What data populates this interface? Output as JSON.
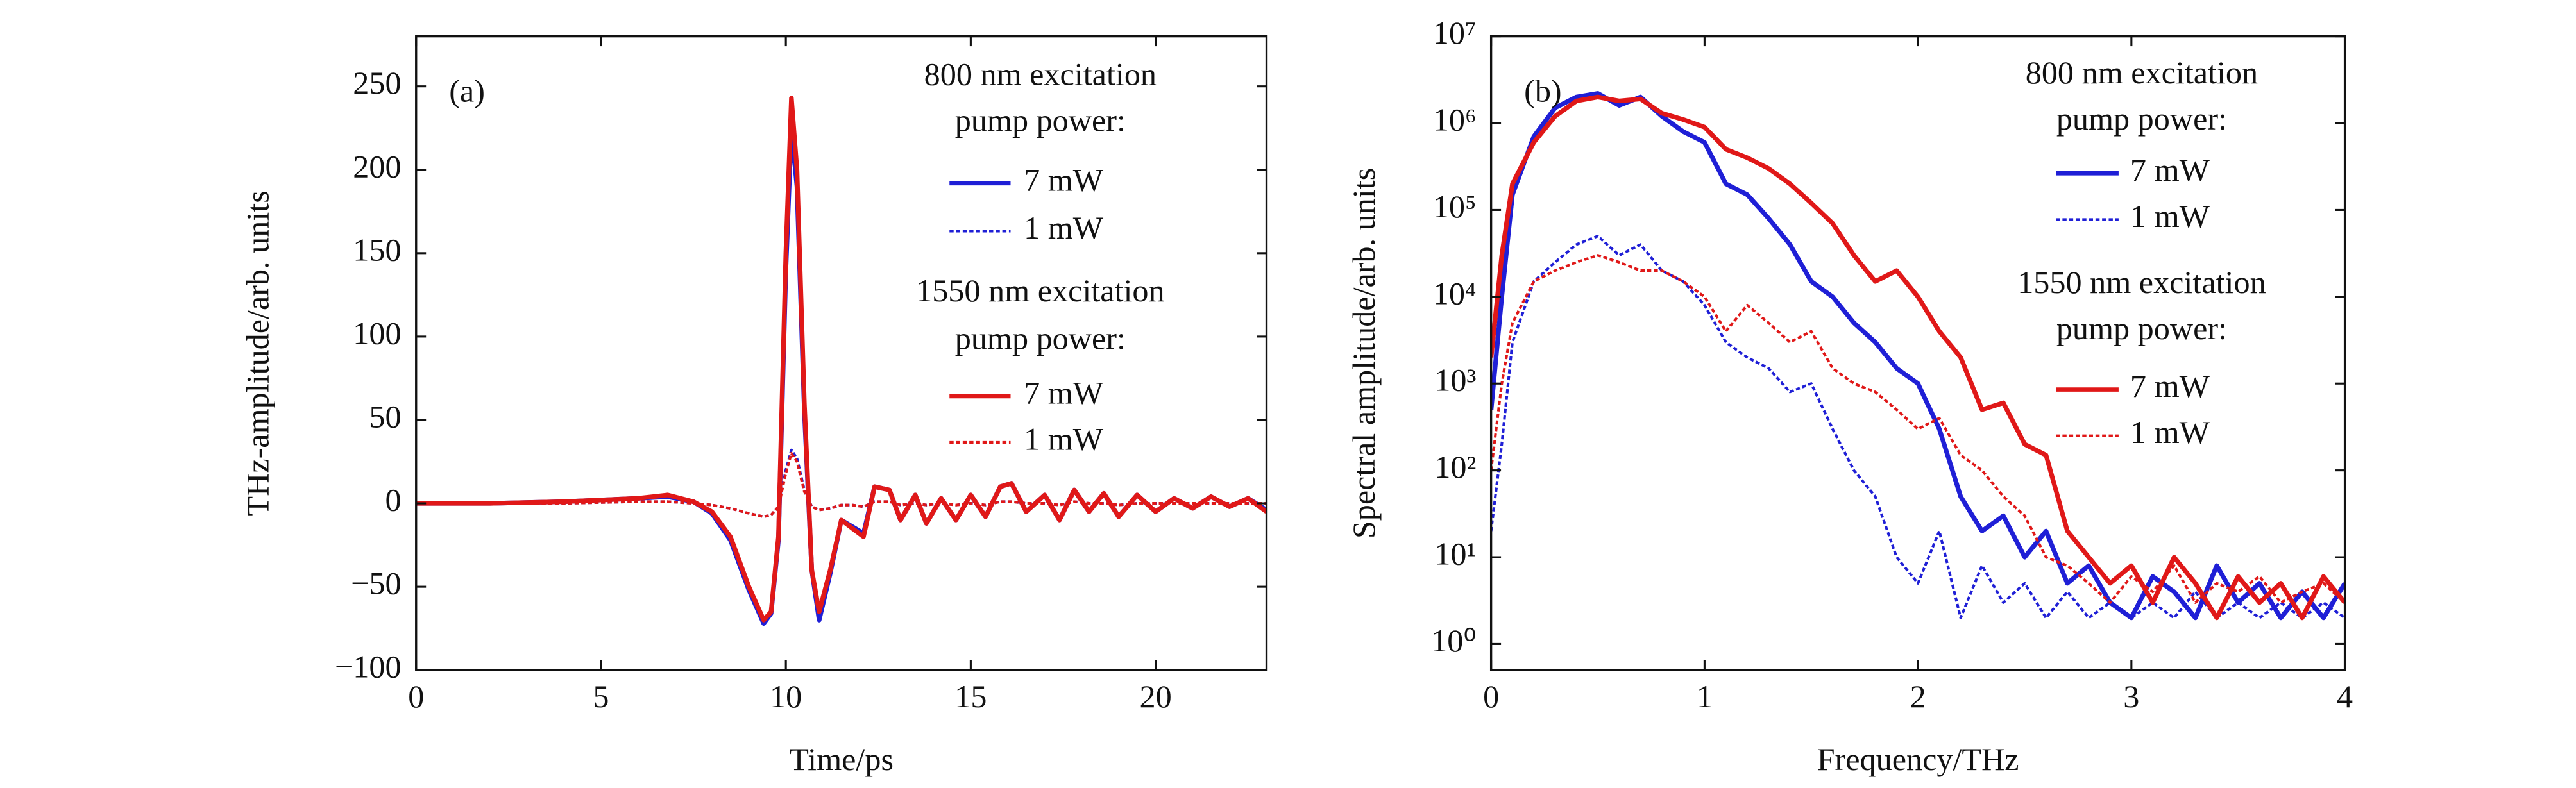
{
  "chart_data": [
    {
      "type": "line",
      "panel_label": "(a)",
      "xlabel": "Time/ps",
      "ylabel": "THz-amplitude/arb. units",
      "xlim": [
        0,
        23
      ],
      "ylim": [
        -100,
        280
      ],
      "xticks": [
        0,
        5,
        10,
        15,
        20
      ],
      "yticks": [
        {
          "value": -100,
          "label": "−100"
        },
        {
          "value": -50,
          "label": "−50"
        },
        0,
        50,
        100,
        150,
        200,
        250
      ],
      "legend_titles": [
        [
          "800 nm excitation",
          "pump power:"
        ],
        [
          "1550 nm excitation",
          "pump power:"
        ]
      ],
      "x": [
        0,
        2,
        4,
        6,
        6.8,
        7.5,
        8,
        8.5,
        9,
        9.4,
        9.6,
        9.8,
        10,
        10.15,
        10.3,
        10.5,
        10.7,
        10.9,
        11.2,
        11.5,
        11.8,
        12.1,
        12.4,
        12.8,
        13.1,
        13.5,
        13.8,
        14.2,
        14.6,
        15,
        15.4,
        15.8,
        16.1,
        16.5,
        17,
        17.4,
        17.8,
        18.2,
        18.6,
        19,
        19.5,
        20,
        20.5,
        21,
        21.5,
        22,
        22.5,
        23
      ],
      "series": [
        {
          "name": "7 mW",
          "color": "#1f1fd6",
          "dash": false,
          "values": [
            0,
            0,
            1,
            3,
            4,
            1,
            -6,
            -22,
            -52,
            -72,
            -66,
            -22,
            140,
            225,
            190,
            55,
            -40,
            -70,
            -42,
            -10,
            -14,
            -18,
            10,
            8,
            -10,
            5,
            -12,
            3,
            -10,
            5,
            -8,
            10,
            12,
            -5,
            5,
            -10,
            8,
            -5,
            6,
            -8,
            5,
            -5,
            3,
            -3,
            4,
            -2,
            3,
            -4
          ]
        },
        {
          "name": "1 mW",
          "color": "#1f1fd6",
          "dash": true,
          "values": [
            0,
            0,
            0,
            1,
            1,
            0,
            -1,
            -3,
            -6,
            -8,
            -7,
            -2,
            20,
            32,
            27,
            8,
            -2,
            -4,
            -3,
            -1,
            -1,
            -2,
            1,
            1,
            -1,
            0,
            -1,
            0,
            -1,
            0,
            -1,
            1,
            1,
            0,
            0,
            -1,
            1,
            0,
            0,
            -1,
            0,
            0,
            0,
            0,
            0,
            0,
            0,
            0
          ]
        },
        {
          "name": "7 mW",
          "color": "#e01818",
          "dash": false,
          "values": [
            0,
            0,
            1,
            3,
            5,
            1,
            -5,
            -20,
            -50,
            -70,
            -65,
            -20,
            150,
            243,
            200,
            60,
            -40,
            -65,
            -40,
            -10,
            -15,
            -20,
            10,
            8,
            -10,
            5,
            -12,
            3,
            -10,
            5,
            -8,
            10,
            12,
            -5,
            5,
            -10,
            8,
            -5,
            6,
            -8,
            5,
            -5,
            3,
            -3,
            4,
            -2,
            3,
            -5
          ]
        },
        {
          "name": "1 mW",
          "color": "#e01818",
          "dash": true,
          "values": [
            0,
            0,
            0,
            1,
            1,
            0,
            -1,
            -3,
            -6,
            -8,
            -7,
            -2,
            18,
            30,
            25,
            7,
            -2,
            -4,
            -3,
            -1,
            -1,
            -2,
            1,
            1,
            -1,
            0,
            -1,
            0,
            -1,
            0,
            -1,
            1,
            1,
            0,
            0,
            -1,
            1,
            0,
            0,
            -1,
            0,
            0,
            0,
            0,
            0,
            0,
            0,
            0
          ]
        }
      ]
    },
    {
      "type": "line",
      "panel_label": "(b)",
      "xlabel": "Frequency/THz",
      "ylabel": "Spectral amplitude/arb. units",
      "log_y": true,
      "xlim": [
        0,
        4
      ],
      "ylim": [
        0.5,
        10000000
      ],
      "xticks": [
        0,
        1,
        2,
        3,
        4
      ],
      "yticks": [
        {
          "value": 1,
          "label": "10⁰"
        },
        {
          "value": 10,
          "label": "10¹"
        },
        {
          "value": 100,
          "label": "10²"
        },
        {
          "value": 1000,
          "label": "10³"
        },
        {
          "value": 10000,
          "label": "10⁴"
        },
        {
          "value": 100000,
          "label": "10⁵"
        },
        {
          "value": 1000000,
          "label": "10⁶"
        },
        {
          "value": 10000000,
          "label": "10⁷"
        }
      ],
      "legend_titles": [
        [
          "800 nm excitation",
          "pump power:"
        ],
        [
          "1550 nm excitation",
          "pump power:"
        ]
      ],
      "x": [
        0,
        0.05,
        0.1,
        0.2,
        0.3,
        0.4,
        0.5,
        0.6,
        0.7,
        0.8,
        0.9,
        1,
        1.1,
        1.2,
        1.3,
        1.4,
        1.5,
        1.6,
        1.7,
        1.8,
        1.9,
        2,
        2.1,
        2.2,
        2.3,
        2.4,
        2.5,
        2.6,
        2.7,
        2.8,
        2.9,
        3,
        3.1,
        3.2,
        3.3,
        3.4,
        3.5,
        3.6,
        3.7,
        3.8,
        3.9,
        4
      ],
      "series": [
        {
          "name": "7 mW",
          "color": "#1f1fd6",
          "dash": false,
          "values": [
            500,
            10000,
            150000,
            700000,
            1500000,
            2000000,
            2200000,
            1600000,
            2000000,
            1200000,
            800000,
            600000,
            200000,
            150000,
            80000,
            40000,
            15000,
            10000,
            5000,
            3000,
            1500,
            1000,
            300,
            50,
            20,
            30,
            10,
            20,
            5,
            8,
            3,
            2,
            6,
            4,
            2,
            8,
            3,
            5,
            2,
            4,
            2,
            5
          ]
        },
        {
          "name": "1 mW",
          "color": "#1f1fd6",
          "dash": true,
          "values": [
            20,
            200,
            3000,
            15000,
            25000,
            40000,
            50000,
            30000,
            40000,
            20000,
            15000,
            8000,
            3000,
            2000,
            1500,
            800,
            1000,
            300,
            100,
            50,
            10,
            5,
            20,
            2,
            8,
            3,
            5,
            2,
            4,
            2,
            3,
            2,
            3,
            2,
            4,
            2,
            3,
            2,
            3,
            2,
            3,
            2
          ]
        },
        {
          "name": "7 mW",
          "color": "#e01818",
          "dash": false,
          "values": [
            2000,
            30000,
            200000,
            600000,
            1200000,
            1800000,
            2000000,
            1800000,
            1900000,
            1300000,
            1100000,
            900000,
            500000,
            400000,
            300000,
            200000,
            120000,
            70000,
            30000,
            15000,
            20000,
            10000,
            4000,
            2000,
            500,
            600,
            200,
            150,
            20,
            10,
            5,
            8,
            3,
            10,
            5,
            2,
            6,
            3,
            5,
            2,
            6,
            3
          ]
        },
        {
          "name": "1 mW",
          "color": "#e01818",
          "dash": true,
          "values": [
            100,
            1000,
            5000,
            15000,
            20000,
            25000,
            30000,
            25000,
            20000,
            20000,
            15000,
            10000,
            4000,
            8000,
            5000,
            3000,
            4000,
            1500,
            1000,
            800,
            500,
            300,
            400,
            150,
            100,
            50,
            30,
            10,
            8,
            5,
            3,
            6,
            4,
            8,
            3,
            5,
            4,
            6,
            3,
            4,
            5,
            3
          ]
        }
      ]
    }
  ]
}
